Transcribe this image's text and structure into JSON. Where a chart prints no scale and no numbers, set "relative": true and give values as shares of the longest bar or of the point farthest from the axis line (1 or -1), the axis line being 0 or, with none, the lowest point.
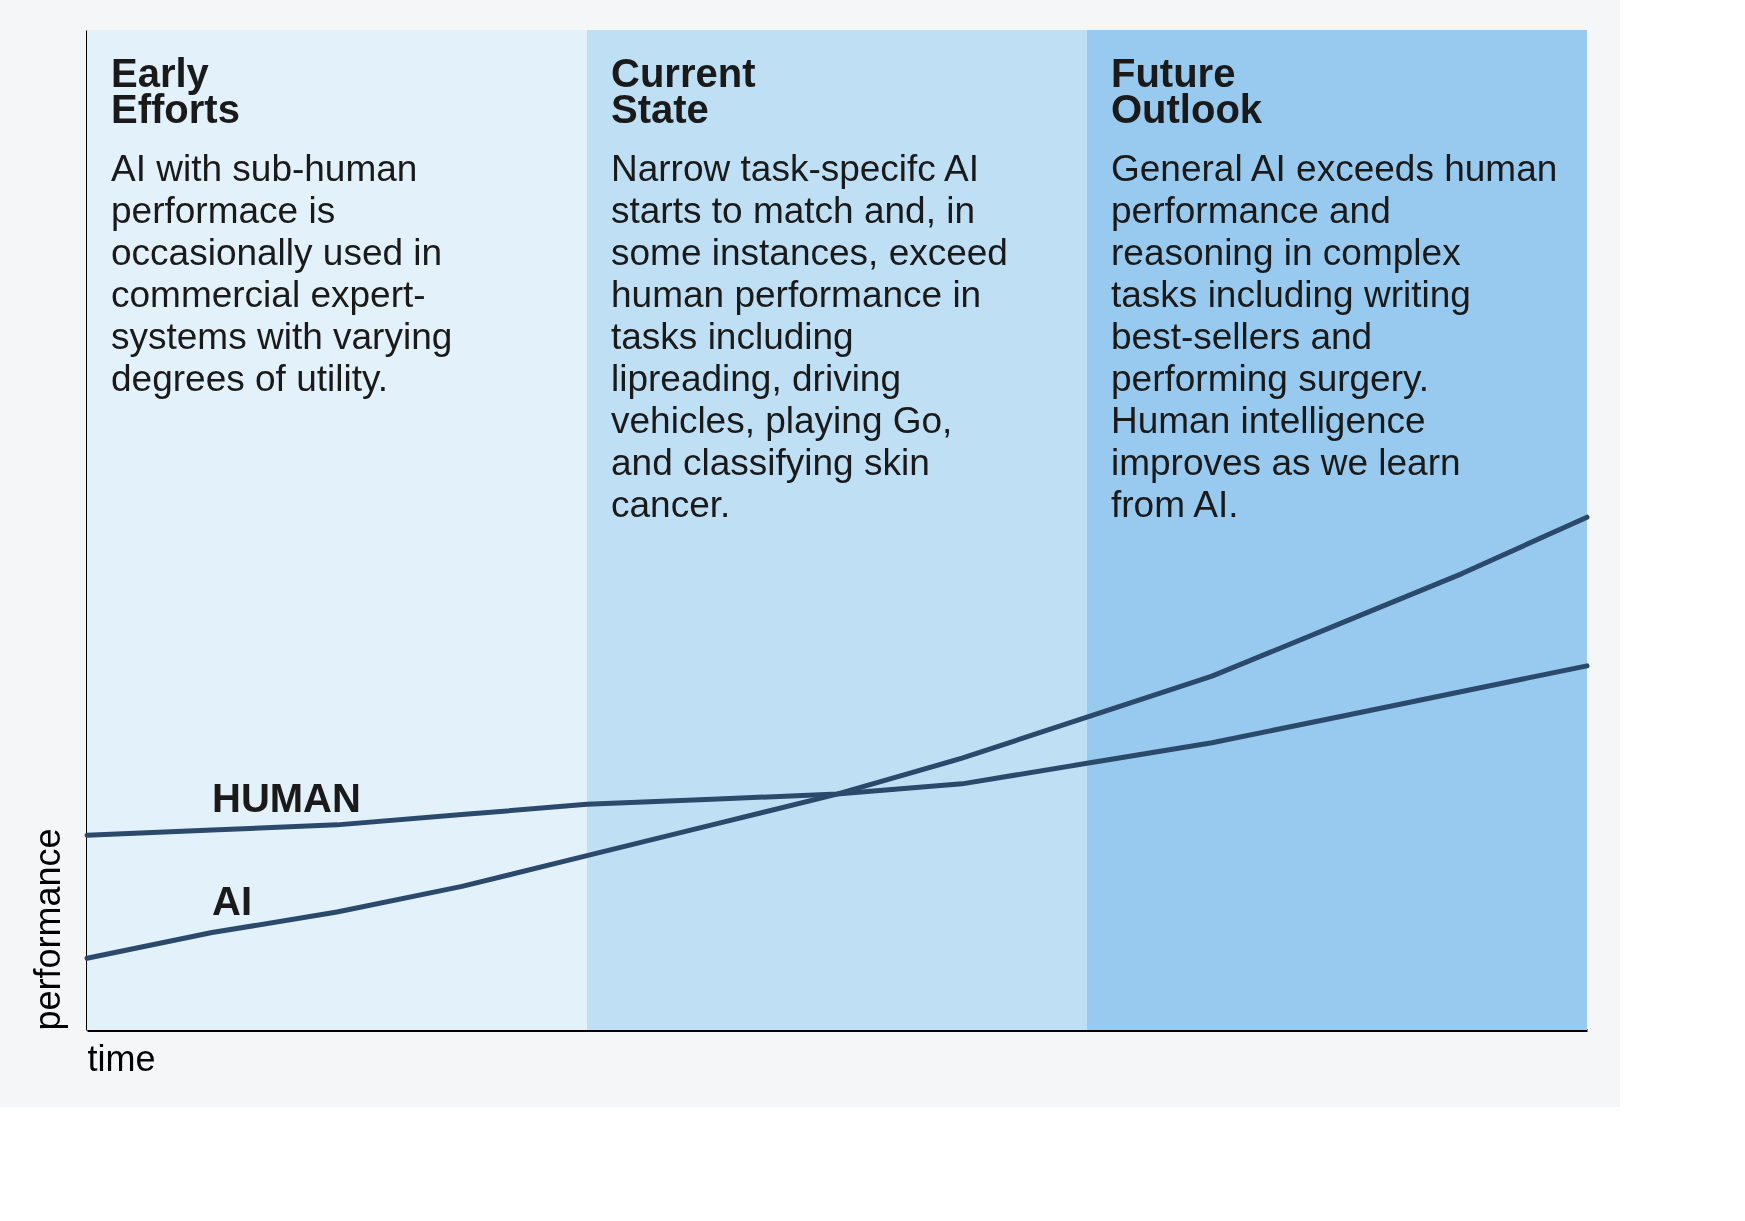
{
  "chart_data": {
    "type": "line",
    "relative": true,
    "xlabel": "time",
    "ylabel": "performance",
    "legend": false,
    "grid": false,
    "marker": "none",
    "line_style": "solid",
    "tick_labels": false,
    "categories": [
      null,
      null,
      null,
      null,
      null,
      null,
      null,
      null,
      null,
      null,
      null,
      null,
      null
    ],
    "series": [
      {
        "name": "HUMAN",
        "color": "#2b4a6b",
        "values": [
          0.38,
          0.39,
          0.4,
          0.42,
          0.44,
          0.45,
          0.46,
          0.48,
          0.52,
          0.56,
          0.61,
          0.66,
          0.71
        ]
      },
      {
        "name": "AI",
        "color": "#2b4a6b",
        "values": [
          0.14,
          0.19,
          0.23,
          0.28,
          0.34,
          0.4,
          0.46,
          0.53,
          0.61,
          0.69,
          0.79,
          0.89,
          1.0
        ]
      }
    ],
    "annotations": [
      "Early Efforts",
      "AI with sub-human performace is occasionally used in commercial expert-systems with varying degrees of utility.",
      "Current State",
      "Narrow task-specifc AI starts to match and, in some instances, exceed human performance in tasks including lipreading, driving vehicles, playing Go, and classifying skin cancer.",
      "Future Outlook",
      "General AI exceeds human performance and reasoning in complex tasks including writing best-sellers and performing surgery. Human intelligence improves as we learn from AI."
    ]
  }
}
